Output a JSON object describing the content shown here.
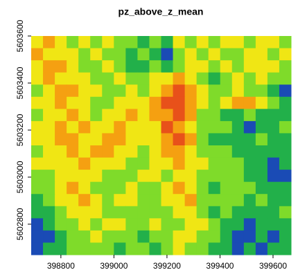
{
  "chart_data": {
    "type": "raster",
    "title": "pz_above_z_mean",
    "xlim": [
      398688,
      399668
    ],
    "ylim": [
      5602670,
      5603600
    ],
    "xticks": [
      398800,
      399000,
      399200,
      399400,
      399600
    ],
    "yticks": [
      5602800,
      5603000,
      5603200,
      5603400,
      5603600
    ],
    "palette": [
      "#1a4bb5",
      "#22b04a",
      "#7fdb2a",
      "#f0e614",
      "#f5a011",
      "#e8511a"
    ],
    "values": [
      [
        3,
        4,
        3,
        2,
        3,
        2,
        3,
        2,
        2,
        1,
        2,
        1,
        3,
        2,
        3,
        2,
        3,
        3,
        2,
        3,
        3,
        2
      ],
      [
        4,
        3,
        3,
        3,
        2,
        3,
        2,
        2,
        1,
        2,
        1,
        0,
        2,
        3,
        2,
        3,
        2,
        2,
        3,
        3,
        2,
        3
      ],
      [
        3,
        4,
        4,
        3,
        2,
        2,
        3,
        2,
        1,
        1,
        2,
        1,
        2,
        3,
        3,
        2,
        3,
        2,
        3,
        3,
        3,
        2
      ],
      [
        3,
        4,
        3,
        3,
        3,
        2,
        2,
        3,
        2,
        2,
        3,
        3,
        4,
        3,
        2,
        1,
        2,
        3,
        2,
        3,
        2,
        2
      ],
      [
        2,
        3,
        4,
        4,
        3,
        3,
        2,
        2,
        3,
        2,
        3,
        4,
        5,
        4,
        3,
        2,
        2,
        3,
        2,
        2,
        1,
        0
      ],
      [
        3,
        3,
        4,
        3,
        3,
        2,
        2,
        3,
        3,
        3,
        4,
        5,
        5,
        4,
        3,
        2,
        3,
        4,
        4,
        3,
        2,
        1
      ],
      [
        2,
        3,
        3,
        4,
        3,
        2,
        3,
        3,
        4,
        3,
        4,
        4,
        5,
        4,
        2,
        2,
        1,
        1,
        2,
        1,
        1,
        1
      ],
      [
        3,
        3,
        4,
        3,
        4,
        3,
        3,
        4,
        3,
        3,
        3,
        5,
        4,
        3,
        2,
        2,
        2,
        1,
        0,
        1,
        1,
        2
      ],
      [
        3,
        3,
        4,
        4,
        3,
        3,
        4,
        4,
        3,
        3,
        3,
        4,
        5,
        4,
        2,
        1,
        1,
        1,
        1,
        2,
        1,
        1
      ],
      [
        2,
        3,
        3,
        4,
        3,
        4,
        4,
        3,
        3,
        2,
        3,
        4,
        4,
        3,
        2,
        2,
        2,
        1,
        1,
        1,
        1,
        1
      ],
      [
        3,
        3,
        3,
        3,
        4,
        3,
        3,
        3,
        2,
        2,
        3,
        3,
        4,
        3,
        3,
        2,
        2,
        2,
        1,
        1,
        0,
        1
      ],
      [
        2,
        2,
        3,
        3,
        3,
        3,
        2,
        2,
        2,
        3,
        3,
        2,
        3,
        3,
        2,
        2,
        2,
        2,
        1,
        1,
        0,
        0
      ],
      [
        2,
        2,
        3,
        4,
        3,
        2,
        2,
        2,
        3,
        2,
        2,
        3,
        4,
        3,
        2,
        1,
        2,
        2,
        2,
        1,
        1,
        1
      ],
      [
        1,
        2,
        3,
        3,
        4,
        3,
        2,
        3,
        3,
        2,
        2,
        3,
        3,
        4,
        2,
        2,
        2,
        2,
        1,
        2,
        1,
        1
      ],
      [
        1,
        1,
        2,
        3,
        3,
        3,
        2,
        2,
        2,
        2,
        2,
        2,
        3,
        3,
        2,
        1,
        2,
        1,
        1,
        1,
        1,
        2
      ],
      [
        0,
        1,
        2,
        2,
        3,
        2,
        3,
        3,
        2,
        2,
        3,
        2,
        2,
        3,
        3,
        2,
        1,
        1,
        0,
        1,
        1,
        1
      ],
      [
        0,
        0,
        1,
        2,
        2,
        3,
        2,
        2,
        2,
        1,
        2,
        2,
        3,
        3,
        2,
        2,
        1,
        0,
        0,
        1,
        0,
        1
      ],
      [
        0,
        1,
        1,
        2,
        2,
        2,
        2,
        1,
        2,
        2,
        1,
        2,
        3,
        2,
        2,
        1,
        1,
        0,
        1,
        0,
        1,
        1
      ]
    ]
  }
}
